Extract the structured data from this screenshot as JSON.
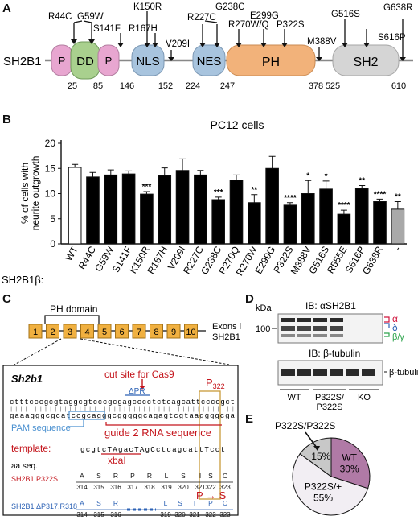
{
  "figure": {
    "panel_letters": [
      "A",
      "B",
      "C",
      "D",
      "E"
    ]
  },
  "panel_a": {
    "protein_label": "SH2B1",
    "domains": [
      {
        "label": "P",
        "color": "#e8a6d0"
      },
      {
        "label": "DD",
        "color": "#a9d08e"
      },
      {
        "label": "P",
        "color": "#e8a6d0"
      },
      {
        "label": "NLS",
        "color": "#a8c4de"
      },
      {
        "label": "NES",
        "color": "#a8c4de"
      },
      {
        "label": "PH",
        "color": "#f2b27a"
      },
      {
        "label": "SH2",
        "color": "#d5d5d5"
      }
    ],
    "positions": [
      "25",
      "85",
      "146",
      "152",
      "224",
      "247",
      "378",
      "525",
      "610"
    ],
    "mutations": [
      "R44C",
      "G59W",
      "K150R",
      "S141F",
      "R167H",
      "V209I",
      "R227C",
      "G238C",
      "R270W/Q",
      "E299G",
      "P322S",
      "M388V",
      "G516S",
      "S616P",
      "G638R"
    ]
  },
  "panel_b": {
    "chart_data": {
      "type": "bar",
      "title": "PC12 cells",
      "ylabel": "% of cells with\nneurite outgrowth",
      "xlabel_prefix": "SH2B1β:",
      "ylim": [
        0,
        20
      ],
      "yticks": [
        "0",
        "5",
        "10",
        "15",
        "20"
      ],
      "categories": [
        "WT",
        "R44C",
        "G59W",
        "S141F",
        "K150R",
        "R167H",
        "V209I",
        "R227C",
        "G238C",
        "R270Q",
        "R270W",
        "E299G",
        "P322S",
        "M388V",
        "G516S",
        "R555E",
        "S616P",
        "G638R",
        "-"
      ],
      "values": [
        15.2,
        13.3,
        13.7,
        13.9,
        9.9,
        13.6,
        14.6,
        13.7,
        8.8,
        12.7,
        8.2,
        15.0,
        7.7,
        10.0,
        10.9,
        5.9,
        11.0,
        8.4,
        6.9
      ],
      "errors": [
        0.6,
        0.9,
        1.0,
        0.6,
        0.5,
        1.5,
        2.3,
        0.9,
        0.5,
        1.0,
        1.6,
        2.4,
        0.5,
        2.6,
        1.6,
        0.8,
        0.6,
        0.5,
        1.5
      ],
      "significance": [
        "",
        "",
        "",
        "",
        "***",
        "",
        "",
        "",
        "***",
        "",
        "**",
        "",
        "****",
        "*",
        "*",
        "****",
        "**",
        "****",
        "**"
      ],
      "bar_fill": {
        "WT": "#ffffff",
        "mutant": "#000000",
        "empty_vector": "#a9a9a9"
      }
    }
  },
  "panel_c": {
    "exon_header": "PH domain",
    "exons": [
      "1",
      "2",
      "3",
      "4",
      "5",
      "6",
      "7",
      "8",
      "9",
      "10"
    ],
    "exon_caption_1": "Exons in",
    "exon_caption_2": "SH2B1",
    "gene": "Sh2b1",
    "cut_site": "cut site for Cas9",
    "p322": "P",
    "p322_sub": "322",
    "delta_pr": "ΔPR",
    "seq_top": "ctttcccgcgtaggcgtcccgcgagcccctctcagcattccccgct",
    "seq_ticks": "||||||||||||||||||||||||||||||||||||||||||||||",
    "seq_bottom": "gaaagggcgcatccgcagggcgggggcagagtcgtaaggggcga",
    "pam": "PAM sequence",
    "guide": "guide 2 RNA sequence",
    "template_label": "template:",
    "template_seq": "gcgtcTAgacTAgCctcagcattTcct",
    "xbaI": "xbaI",
    "aa_seq": "aa seq.",
    "mut1_name": "SH2B1 P322S",
    "mut1_aa": [
      "A",
      "S",
      "R",
      "P",
      "R",
      "L",
      "S",
      "I",
      "S",
      "C"
    ],
    "mut1_num": [
      "314",
      "315",
      "316",
      "317",
      "318",
      "319",
      "320",
      "321",
      "322",
      "323"
    ],
    "p_to_s": "P → S",
    "mut2_name": "SH2B1 ΔP317,R318",
    "mut2_aa": [
      "A",
      "S",
      "R",
      "L",
      "S",
      "I",
      "P",
      "C"
    ],
    "mut2_num": [
      "314",
      "315",
      "316",
      "319",
      "320",
      "321",
      "322",
      "323"
    ]
  },
  "panel_d": {
    "kda": "kDa",
    "marker": "100",
    "ib1": "IB: αSH2B1",
    "ib2": "IB: β-tubulin",
    "isoforms": [
      "α",
      "δ",
      "β/γ"
    ],
    "isoform_colors": [
      "#d0143c",
      "#2c62b5",
      "#2aa24a"
    ],
    "tubulin": "β-tubulin",
    "groups": [
      "WT",
      "P322S/\nP322S",
      "KO"
    ]
  },
  "panel_e": {
    "chart_data": {
      "type": "pie",
      "labels": [
        "WT",
        "P322S/+",
        "P322S/P322S"
      ],
      "values": [
        30,
        55,
        15
      ],
      "value_labels": [
        "WT\n30%",
        "P322S/+\n55%",
        "15%"
      ],
      "colors": [
        "#b07aa6",
        "#f2eef3",
        "#c8c8c8"
      ],
      "callout": "P322S/P322S"
    }
  }
}
